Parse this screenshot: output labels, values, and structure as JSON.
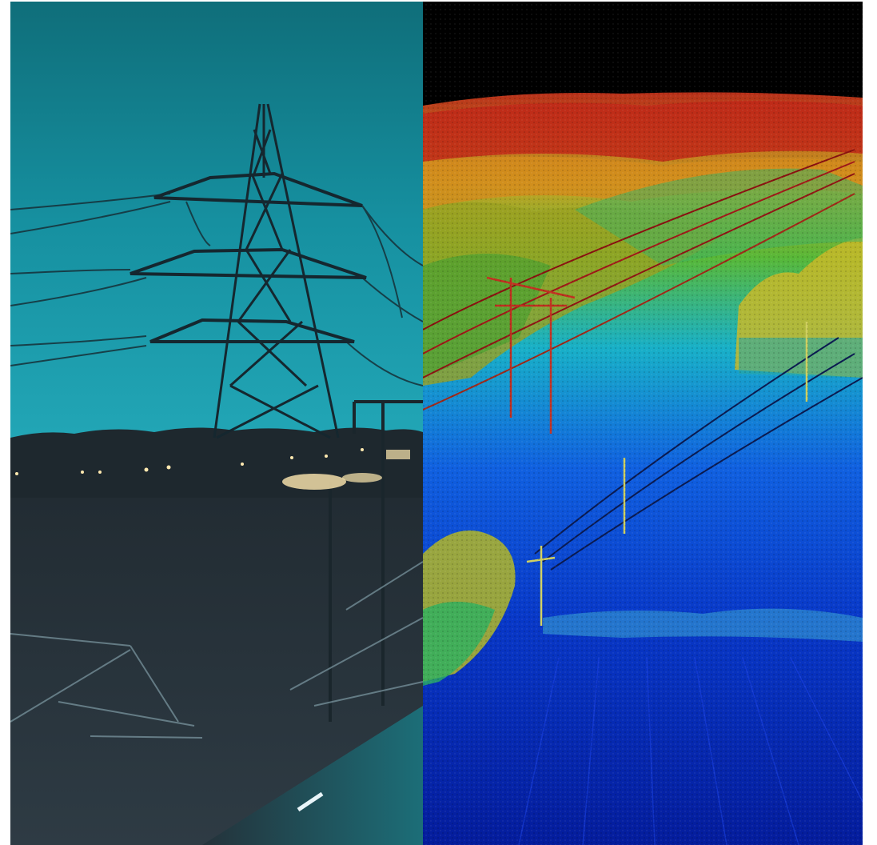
{
  "composite": {
    "panels": [
      {
        "id": "photo",
        "palette": {
          "sky_top": "#0f7a86",
          "sky_bottom": "#1d9fb0",
          "ground": "#2a3640",
          "tower": "#1a2a33",
          "lights": "#ffe9b0"
        }
      },
      {
        "id": "lidar",
        "palette": {
          "sky": "#000000",
          "red": "#c8281a",
          "orange": "#e08a1c",
          "yellow": "#d8d020",
          "green": "#38b840",
          "cyan": "#18b8d8",
          "blue": "#1040d8",
          "deep_blue": "#0418a0"
        }
      }
    ]
  }
}
